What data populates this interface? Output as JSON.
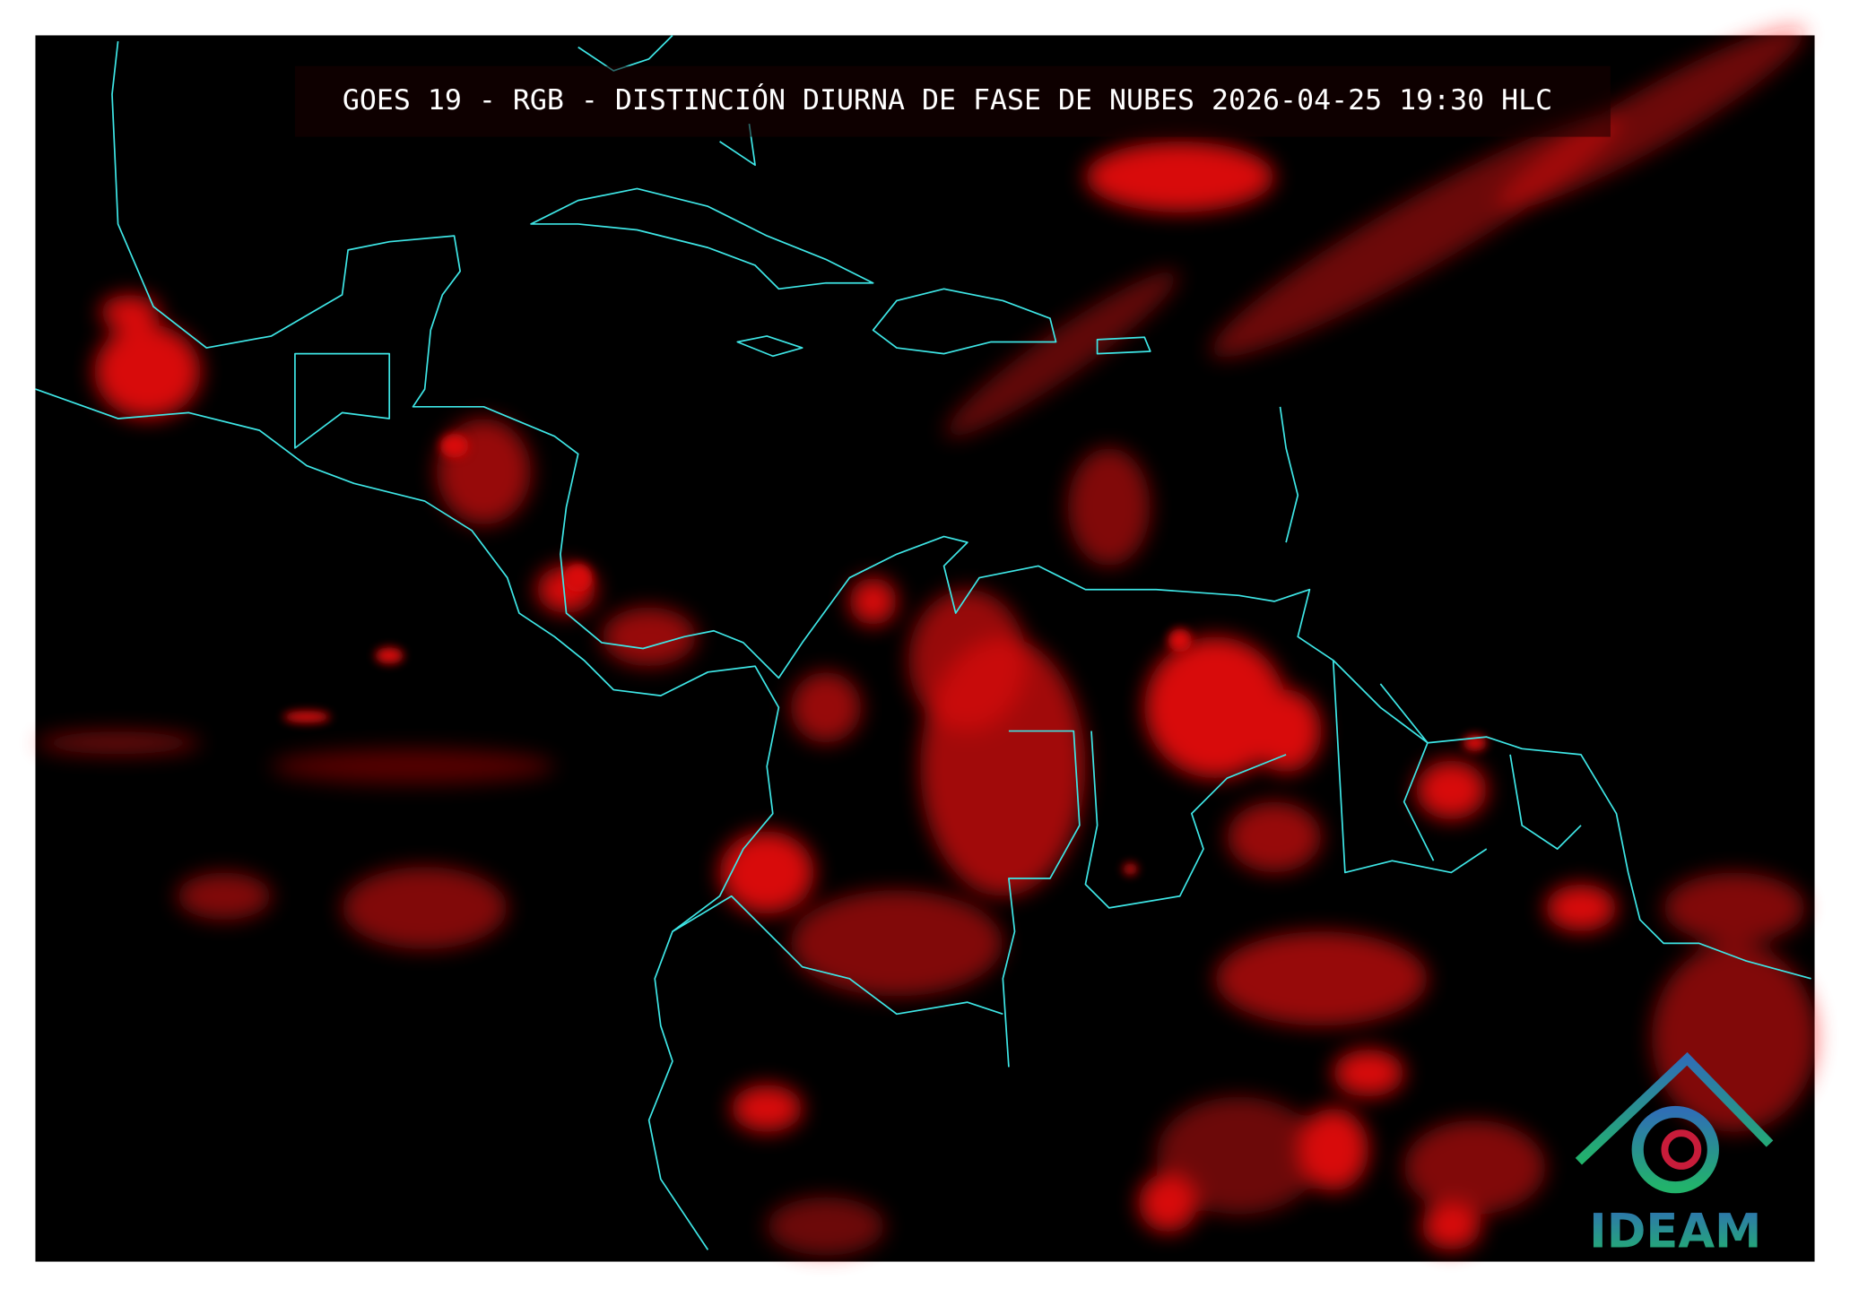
{
  "title": "GOES 19 - RGB - DISTINCIÓN DIURNA DE FASE DE NUBES 2026-04-25 19:30 HLC",
  "logo": {
    "text": "IDEAM"
  }
}
